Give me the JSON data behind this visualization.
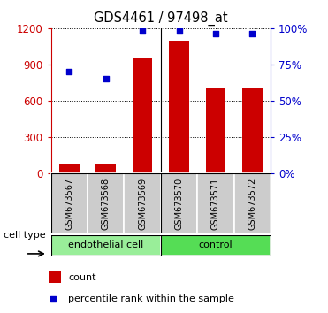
{
  "title": "GDS4461 / 97498_at",
  "samples": [
    "GSM673567",
    "GSM673568",
    "GSM673569",
    "GSM673570",
    "GSM673571",
    "GSM673572"
  ],
  "counts": [
    75,
    75,
    950,
    1100,
    700,
    700
  ],
  "percentiles": [
    70,
    65,
    98,
    98,
    96,
    96
  ],
  "left_ylim": [
    0,
    1200
  ],
  "right_ylim": [
    0,
    100
  ],
  "left_yticks": [
    0,
    300,
    600,
    900,
    1200
  ],
  "right_yticks": [
    0,
    25,
    50,
    75,
    100
  ],
  "bar_color": "#cc0000",
  "dot_color": "#0000cc",
  "groups": [
    {
      "label": "endothelial cell",
      "start": 0,
      "end": 3,
      "color": "#99ee99"
    },
    {
      "label": "control",
      "start": 3,
      "end": 6,
      "color": "#55dd55"
    }
  ],
  "group_label": "cell type",
  "left_axis_color": "#cc0000",
  "right_axis_color": "#0000cc",
  "legend_count_label": "count",
  "legend_pct_label": "percentile rank within the sample",
  "sample_box_color": "#cccccc",
  "bar_width": 0.55
}
